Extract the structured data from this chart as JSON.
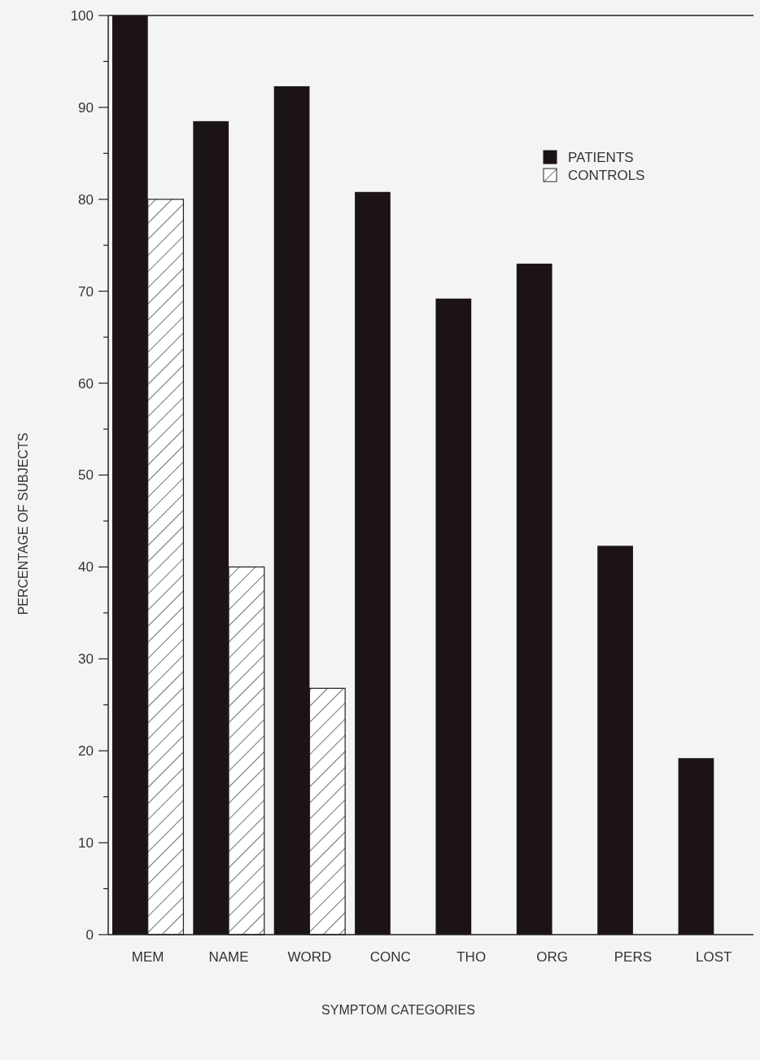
{
  "chart_data": {
    "type": "bar",
    "xlabel": "SYMPTOM CATEGORIES",
    "ylabel": "PERCENTAGE OF SUBJECTS",
    "categories": [
      "MEM",
      "NAME",
      "WORD",
      "CONC",
      "THO",
      "ORG",
      "PERS",
      "LOST"
    ],
    "series": [
      {
        "name": "PATIENTS",
        "color": "#1c1315",
        "values": [
          100,
          88.5,
          92.3,
          80.8,
          69.2,
          73,
          42.3,
          19.2
        ]
      },
      {
        "name": "CONTROLS",
        "color": "#222222",
        "values": [
          80,
          40,
          26.8,
          0,
          0,
          0,
          0,
          0
        ]
      }
    ],
    "ylim": [
      0,
      100
    ],
    "yticks": [
      0,
      {
        "value": 5,
        "label": null
      },
      10,
      {
        "value": 15,
        "label": null
      },
      20,
      {
        "value": 25,
        "label": null
      },
      30,
      {
        "value": 35,
        "label": null
      },
      40,
      {
        "value": 45,
        "label": null
      },
      50,
      {
        "value": 55,
        "label": null
      },
      60,
      {
        "value": 65,
        "label": null
      },
      70,
      {
        "value": 75,
        "label": null
      },
      80,
      {
        "value": 85,
        "label": null
      },
      90,
      {
        "value": 95,
        "label": null
      },
      100
    ],
    "grid": false,
    "legend": "top right"
  }
}
